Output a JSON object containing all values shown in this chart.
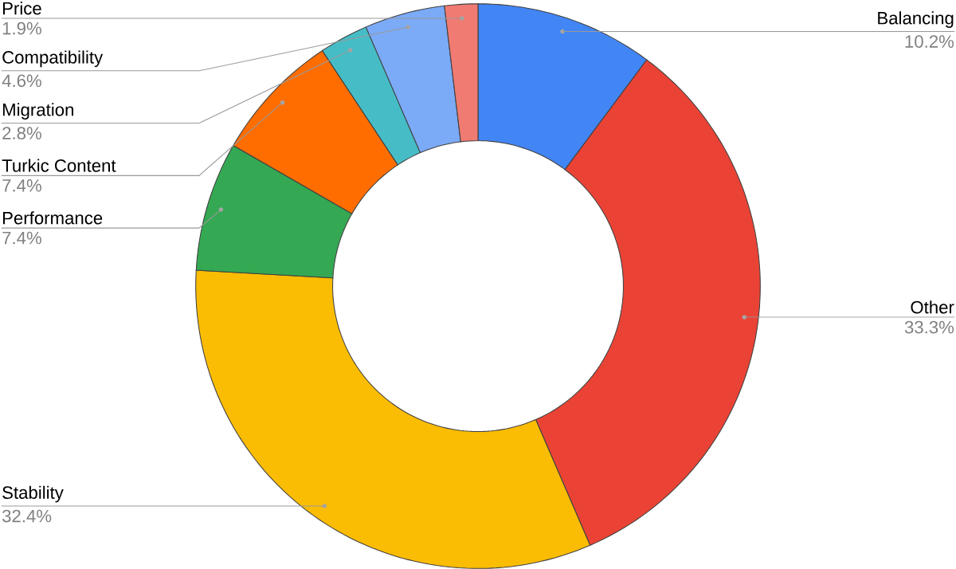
{
  "chart_data": {
    "type": "donut",
    "categories": [
      "Balancing",
      "Other",
      "Stability",
      "Performance",
      "Turkic Content",
      "Migration",
      "Compatibility",
      "Price"
    ],
    "values": [
      10.2,
      33.3,
      32.4,
      7.4,
      7.4,
      2.8,
      4.6,
      1.9
    ],
    "colors": [
      "#4285f4",
      "#ea4335",
      "#fbbc04",
      "#34a853",
      "#ff6d01",
      "#46bdc6",
      "#7baaf7",
      "#f07b72"
    ],
    "value_labels": [
      "10.2%",
      "33.3%",
      "32.4%",
      "7.4%",
      "7.4%",
      "2.8%",
      "4.6%",
      "1.9%"
    ]
  }
}
